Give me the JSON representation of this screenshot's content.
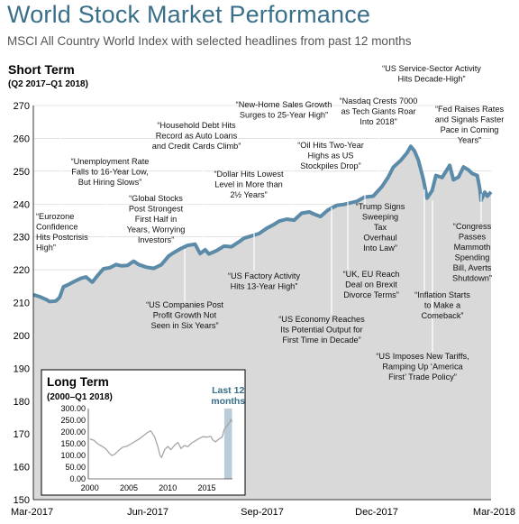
{
  "title": "World Stock Market Performance",
  "subtitle": "MSCI All Country World Index with selected headlines from past 12 months",
  "colors": {
    "title": "#3a6f8a",
    "line": "#5b8ba8",
    "area": "#d9d9d9",
    "highlight": "#b9ccd9",
    "longterm_line": "#a6a6a6"
  },
  "chart_data": [
    {
      "type": "area",
      "title": "Short Term",
      "subtitle": "(Q2 2017–Q1 2018)",
      "x_tick_labels": [
        "Mar-2017",
        "Jun-2017",
        "Sep-2017",
        "Dec-2017",
        "Mar-2018"
      ],
      "y_ticks": [
        150,
        160,
        170,
        180,
        190,
        200,
        210,
        220,
        230,
        240,
        250,
        260,
        270
      ],
      "ylim": [
        150,
        270
      ],
      "x_range": [
        "2017-03-31",
        "2018-03-31"
      ],
      "series": [
        {
          "values": [
            [
              "2017-03-31",
              212.4
            ],
            [
              "2017-04-05",
              211.8
            ],
            [
              "2017-04-10",
              211.0
            ],
            [
              "2017-04-13",
              210.3
            ],
            [
              "2017-04-18",
              210.5
            ],
            [
              "2017-04-21",
              211.6
            ],
            [
              "2017-04-24",
              214.8
            ],
            [
              "2017-04-28",
              215.5
            ],
            [
              "2017-05-03",
              216.5
            ],
            [
              "2017-05-08",
              217.4
            ],
            [
              "2017-05-12",
              217.8
            ],
            [
              "2017-05-17",
              216.2
            ],
            [
              "2017-05-22",
              218.6
            ],
            [
              "2017-05-26",
              220.3
            ],
            [
              "2017-05-31",
              220.6
            ],
            [
              "2017-06-05",
              221.6
            ],
            [
              "2017-06-09",
              221.2
            ],
            [
              "2017-06-14",
              221.3
            ],
            [
              "2017-06-19",
              222.6
            ],
            [
              "2017-06-23",
              221.6
            ],
            [
              "2017-06-29",
              220.8
            ],
            [
              "2017-07-05",
              220.4
            ],
            [
              "2017-07-11",
              221.5
            ],
            [
              "2017-07-17",
              224.2
            ],
            [
              "2017-07-21",
              225.2
            ],
            [
              "2017-07-26",
              226.3
            ],
            [
              "2017-08-01",
              227.4
            ],
            [
              "2017-08-07",
              227.8
            ],
            [
              "2017-08-11",
              224.9
            ],
            [
              "2017-08-15",
              226.1
            ],
            [
              "2017-08-18",
              224.8
            ],
            [
              "2017-08-24",
              225.8
            ],
            [
              "2017-08-30",
              227.2
            ],
            [
              "2017-09-05",
              227.0
            ],
            [
              "2017-09-11",
              228.5
            ],
            [
              "2017-09-15",
              229.6
            ],
            [
              "2017-09-21",
              230.3
            ],
            [
              "2017-09-27",
              231.0
            ],
            [
              "2017-10-03",
              232.6
            ],
            [
              "2017-10-09",
              233.8
            ],
            [
              "2017-10-13",
              234.8
            ],
            [
              "2017-10-19",
              235.4
            ],
            [
              "2017-10-25",
              235.1
            ],
            [
              "2017-10-31",
              237.2
            ],
            [
              "2017-11-06",
              237.6
            ],
            [
              "2017-11-10",
              236.9
            ],
            [
              "2017-11-15",
              236.2
            ],
            [
              "2017-11-21",
              238.2
            ],
            [
              "2017-11-28",
              239.6
            ],
            [
              "2017-12-04",
              239.9
            ],
            [
              "2017-12-08",
              240.3
            ],
            [
              "2017-12-14",
              240.8
            ],
            [
              "2017-12-20",
              242.1
            ],
            [
              "2017-12-27",
              242.4
            ],
            [
              "2018-01-03",
              245.3
            ],
            [
              "2018-01-08",
              248.2
            ],
            [
              "2018-01-12",
              251.2
            ],
            [
              "2018-01-18",
              253.3
            ],
            [
              "2018-01-23",
              255.6
            ],
            [
              "2018-01-26",
              257.6
            ],
            [
              "2018-01-29",
              256.1
            ],
            [
              "2018-02-01",
              253.4
            ],
            [
              "2018-02-05",
              247.6
            ],
            [
              "2018-02-08",
              241.8
            ],
            [
              "2018-02-12",
              244.1
            ],
            [
              "2018-02-15",
              248.7
            ],
            [
              "2018-02-20",
              248.1
            ],
            [
              "2018-02-26",
              251.8
            ],
            [
              "2018-03-01",
              247.4
            ],
            [
              "2018-03-05",
              248.2
            ],
            [
              "2018-03-09",
              251.3
            ],
            [
              "2018-03-13",
              250.4
            ],
            [
              "2018-03-16",
              249.3
            ],
            [
              "2018-03-20",
              248.7
            ],
            [
              "2018-03-22",
              244.6
            ],
            [
              "2018-03-23",
              241.1
            ],
            [
              "2018-03-26",
              243.6
            ],
            [
              "2018-03-28",
              242.4
            ],
            [
              "2018-03-31",
              243.7
            ]
          ]
        }
      ],
      "annotations": [
        "“Eurozone\nConfidence\nHits Postcrisis\nHigh”",
        "“Unemployment Rate\nFalls to 16-Year Low,\nBut Hiring Slows”",
        "“Global Stocks\nPost Strongest\nFirst Half in\nYears, Worrying\nInvestors”",
        "“US Companies Post\nProfit Growth Not\nSeen in Six Years”",
        "“Household Debt Hits\nRecord as Auto Loans\nand Credit Cards Climb”",
        "“Dollar Hits Lowest\nLevel in More than\n2½ Years”",
        "“US Factory Activity\nHits 13-Year High”",
        "“New-Home Sales Growth\nSurges to 25-Year High”",
        "“US Economy Reaches\nIts Potential Output for\nFirst Time in Decade”",
        "“Oil Hits Two-Year\nHighs as US\nStockpiles Drop”",
        "“UK, EU Reach\nDeal on Brexit\nDivorce Terms”",
        "“Nasdaq Crests 7000\nas Tech Giants Roar\nInto 2018”",
        "“Trump Signs\nSweeping\nTax\nOverhaul\nInto Law”",
        "“US Imposes New Tariffs,\nRamping Up ‘America\nFirst’ Trade Policy”",
        "“US Service-Sector Activity\nHits Decade-High”",
        "“Inflation Starts\nto Make a\nComeback”",
        "“Fed Raises Rates\nand Signals Faster\nPace in Coming\nYears”",
        "“Congress\nPasses\nMammoth\nSpending\nBill, Averts\nShutdown”"
      ]
    },
    {
      "type": "line",
      "title": "Long Term",
      "subtitle": "(2000–Q1 2018)",
      "highlight_label": "Last 12\nmonths",
      "x_tick_labels": [
        "2000",
        "2005",
        "2010",
        "2015"
      ],
      "y_tick_labels": [
        "300.00",
        "250.00",
        "200.00",
        "150.00",
        "100.00",
        "50.00",
        "0.00"
      ],
      "ylim": [
        0,
        300
      ],
      "xlim": [
        1999.8,
        2018.3
      ],
      "highlight_range": [
        2017.25,
        2018.25
      ],
      "series": [
        {
          "values": [
            [
              2000.0,
              170
            ],
            [
              2000.5,
              165
            ],
            [
              2001.0,
              150
            ],
            [
              2001.5,
              140
            ],
            [
              2002.0,
              130
            ],
            [
              2002.5,
              110
            ],
            [
              2002.8,
              100
            ],
            [
              2003.2,
              105
            ],
            [
              2003.7,
              122
            ],
            [
              2004.2,
              135
            ],
            [
              2004.8,
              140
            ],
            [
              2005.3,
              150
            ],
            [
              2005.8,
              160
            ],
            [
              2006.4,
              172
            ],
            [
              2006.9,
              185
            ],
            [
              2007.4,
              198
            ],
            [
              2007.8,
              205
            ],
            [
              2008.3,
              180
            ],
            [
              2008.7,
              140
            ],
            [
              2009.0,
              100
            ],
            [
              2009.2,
              92
            ],
            [
              2009.6,
              125
            ],
            [
              2010.0,
              138
            ],
            [
              2010.4,
              125
            ],
            [
              2010.9,
              145
            ],
            [
              2011.3,
              155
            ],
            [
              2011.7,
              130
            ],
            [
              2012.1,
              142
            ],
            [
              2012.6,
              138
            ],
            [
              2013.0,
              152
            ],
            [
              2013.5,
              162
            ],
            [
              2014.0,
              172
            ],
            [
              2014.5,
              180
            ],
            [
              2015.0,
              178
            ],
            [
              2015.5,
              182
            ],
            [
              2015.8,
              165
            ],
            [
              2016.1,
              158
            ],
            [
              2016.5,
              168
            ],
            [
              2017.0,
              180
            ],
            [
              2017.25,
              212
            ],
            [
              2017.5,
              222
            ],
            [
              2017.75,
              232
            ],
            [
              2018.0,
              245
            ],
            [
              2018.1,
              255
            ],
            [
              2018.25,
              244
            ]
          ]
        }
      ]
    }
  ]
}
